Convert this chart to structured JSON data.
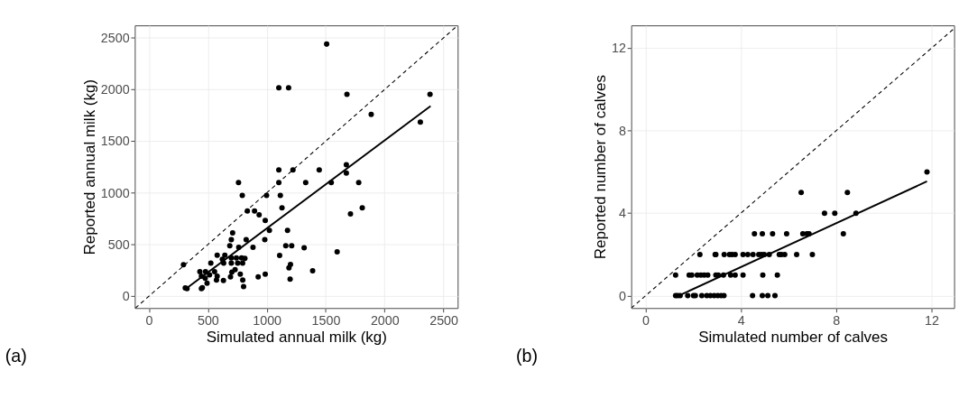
{
  "chart_data": [
    {
      "type": "scatter",
      "xlabel": "Simulated annual milk (kg)",
      "ylabel": "Reported annual milk (kg)",
      "annotations": [
        "(a)"
      ],
      "xlim": [
        -120,
        2620
      ],
      "ylim": [
        -115,
        2620
      ],
      "xticks": [
        0,
        500,
        1000,
        1500,
        2000,
        2500
      ],
      "yticks": [
        0,
        500,
        1000,
        1500,
        2000,
        2500
      ],
      "grid": true,
      "series": [
        {
          "marker": "circle",
          "color": "#000000",
          "x": [
            1508,
            1102,
            1185,
            1680,
            2385,
            1886,
            2303,
            1675,
            1675,
            1102,
            1222,
            1445,
            760,
            1102,
            1330,
            1547,
            1780,
            792,
            998,
            1115,
            1129,
            1810,
            1710,
            835,
            896,
            935,
            987,
            1022,
            1176,
            710,
            699,
            825,
            983,
            686,
            762,
            883,
            1161,
            1211,
            1317,
            1597,
            1109,
            579,
            644,
            525,
            293,
            623,
            699,
            742,
            786,
            814,
            634,
            699,
            753,
            795,
            1201,
            1188,
            432,
            480,
            557,
            731,
            703,
            1389,
            579,
            775,
            927,
            987,
            445,
            477,
            573,
            632,
            692,
            796,
            1198,
            493,
            308,
            323,
            445,
            453,
            803,
            514
          ],
          "values": [
            2439,
            2016,
            2016,
            1953,
            1953,
            1758,
            1685,
            1271,
            1191,
            1221,
            1221,
            1221,
            1100,
            1100,
            1100,
            1100,
            1100,
            976,
            976,
            976,
            855,
            855,
            795,
            825,
            825,
            787,
            732,
            636,
            636,
            613,
            547,
            547,
            547,
            489,
            474,
            474,
            489,
            489,
            469,
            429,
            394,
            396,
            396,
            320,
            305,
            358,
            371,
            371,
            371,
            366,
            320,
            320,
            320,
            320,
            308,
            275,
            237,
            237,
            237,
            257,
            232,
            245,
            194,
            214,
            187,
            214,
            194,
            174,
            156,
            151,
            187,
            156,
            166,
            126,
            81,
            73,
            73,
            83,
            93,
            207
          ]
        },
        {
          "type": "line",
          "line_style": "solid",
          "color": "#000000",
          "x": [
            300,
            2390
          ],
          "values": [
            60,
            1840
          ]
        },
        {
          "type": "line",
          "line_style": "dashed",
          "color": "#000000",
          "x": [
            -115,
            2620
          ],
          "values": [
            -115,
            2620
          ]
        }
      ]
    },
    {
      "type": "scatter",
      "xlabel": "Simulated number of calves",
      "ylabel": "Reported number of calves",
      "annotations": [
        "(b)"
      ],
      "xlim": [
        -0.6,
        12.95
      ],
      "ylim": [
        -0.6,
        13.1
      ],
      "xticks": [
        0,
        4,
        8,
        12
      ],
      "yticks": [
        0,
        4,
        8,
        12
      ],
      "grid": true,
      "series": [
        {
          "marker": "circle",
          "color": "#000000",
          "x": [
            11.81,
            6.53,
            8.47,
            7.51,
            7.94,
            8.83,
            4.57,
            4.9,
            5.33,
            5.92,
            6.6,
            6.77,
            6.86,
            8.3,
            2.28,
            2.92,
            2.95,
            3.3,
            3.52,
            3.63,
            3.76,
            4.09,
            4.29,
            4.51,
            4.75,
            4.87,
            4.98,
            5.19,
            5.61,
            5.7,
            5.84,
            6.34,
            7.0,
            1.26,
            1.83,
            1.94,
            2.17,
            2.32,
            2.46,
            2.61,
            2.95,
            3.05,
            3.27,
            3.57,
            3.76,
            4.09,
            4.92,
            5.53,
            1.26,
            1.34,
            1.45,
            1.77,
            2.01,
            2.09,
            2.36,
            2.57,
            2.72,
            2.88,
            3.03,
            3.17,
            3.29,
            4.49,
            4.9,
            5.13,
            5.43
          ],
          "values": [
            6,
            5,
            5,
            4,
            4,
            4,
            3,
            3,
            3,
            3,
            3,
            3,
            3,
            3,
            2,
            2,
            2,
            2,
            2,
            2,
            2,
            2,
            2,
            2,
            2,
            2,
            2,
            2,
            2,
            2,
            2,
            2,
            2,
            1,
            1,
            1,
            1,
            1,
            1,
            1,
            1,
            1,
            1,
            1,
            1,
            1,
            1,
            1,
            0,
            0,
            0,
            0,
            0,
            0,
            0,
            0,
            0,
            0,
            0,
            0,
            0,
            0,
            0,
            0,
            0
          ]
        },
        {
          "type": "line",
          "line_style": "solid",
          "color": "#000000",
          "x": [
            1.45,
            11.81
          ],
          "values": [
            0.03,
            5.54
          ]
        },
        {
          "type": "line",
          "line_style": "dashed",
          "color": "#000000",
          "x": [
            -0.6,
            12.95
          ],
          "values": [
            -0.6,
            12.95
          ]
        }
      ]
    }
  ]
}
